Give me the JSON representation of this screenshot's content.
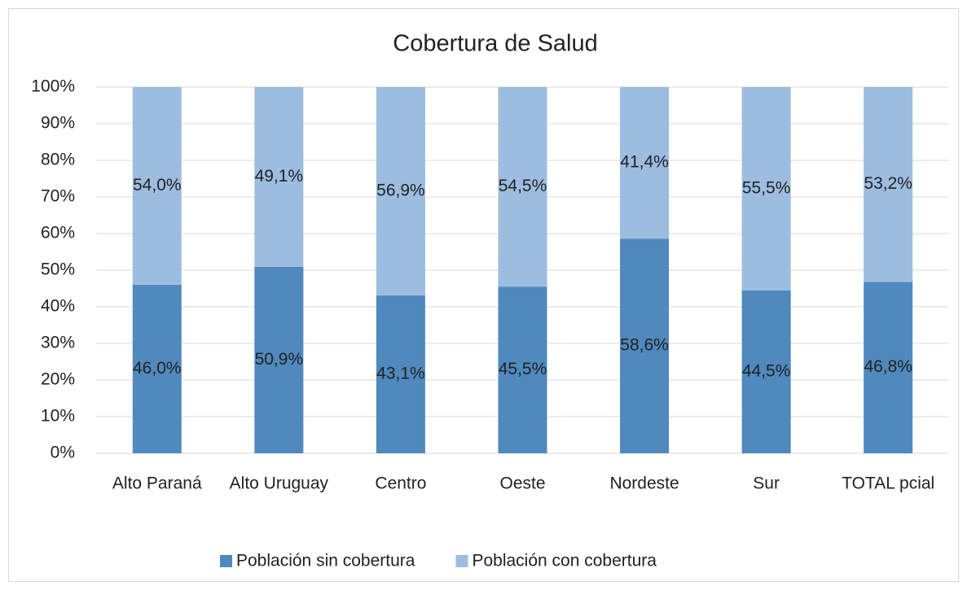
{
  "chart_data": {
    "type": "stacked_bar",
    "title": "Cobertura de Salud",
    "categories": [
      "Alto Paraná",
      "Alto Uruguay",
      "Centro",
      "Oeste",
      "Nordeste",
      "Sur",
      "TOTAL pcial"
    ],
    "series": [
      {
        "name": "Población sin cobertura",
        "color": "#4f89bd",
        "values": [
          46.0,
          50.9,
          43.1,
          45.5,
          58.6,
          44.5,
          46.8
        ],
        "value_labels": [
          "46,0%",
          "50,9%",
          "43,1%",
          "45,5%",
          "58,6%",
          "44,5%",
          "46,8%"
        ]
      },
      {
        "name": "Población con cobertura",
        "color": "#9dbde0",
        "values": [
          54.0,
          49.1,
          56.9,
          54.5,
          41.4,
          55.5,
          53.2
        ],
        "value_labels": [
          "54,0%",
          "49,1%",
          "56,9%",
          "54,5%",
          "41,4%",
          "55,5%",
          "53,2%"
        ]
      }
    ],
    "ylim": [
      0,
      100
    ],
    "yticks": [
      {
        "value": 0,
        "label": "0%"
      },
      {
        "value": 10,
        "label": "10%"
      },
      {
        "value": 20,
        "label": "20%"
      },
      {
        "value": 30,
        "label": "30%"
      },
      {
        "value": 40,
        "label": "40%"
      },
      {
        "value": 50,
        "label": "50%"
      },
      {
        "value": 60,
        "label": "60%"
      },
      {
        "value": 70,
        "label": "70%"
      },
      {
        "value": 80,
        "label": "80%"
      },
      {
        "value": 90,
        "label": "90%"
      },
      {
        "value": 100,
        "label": "100%"
      }
    ],
    "grid": true,
    "legend": "bottom"
  }
}
